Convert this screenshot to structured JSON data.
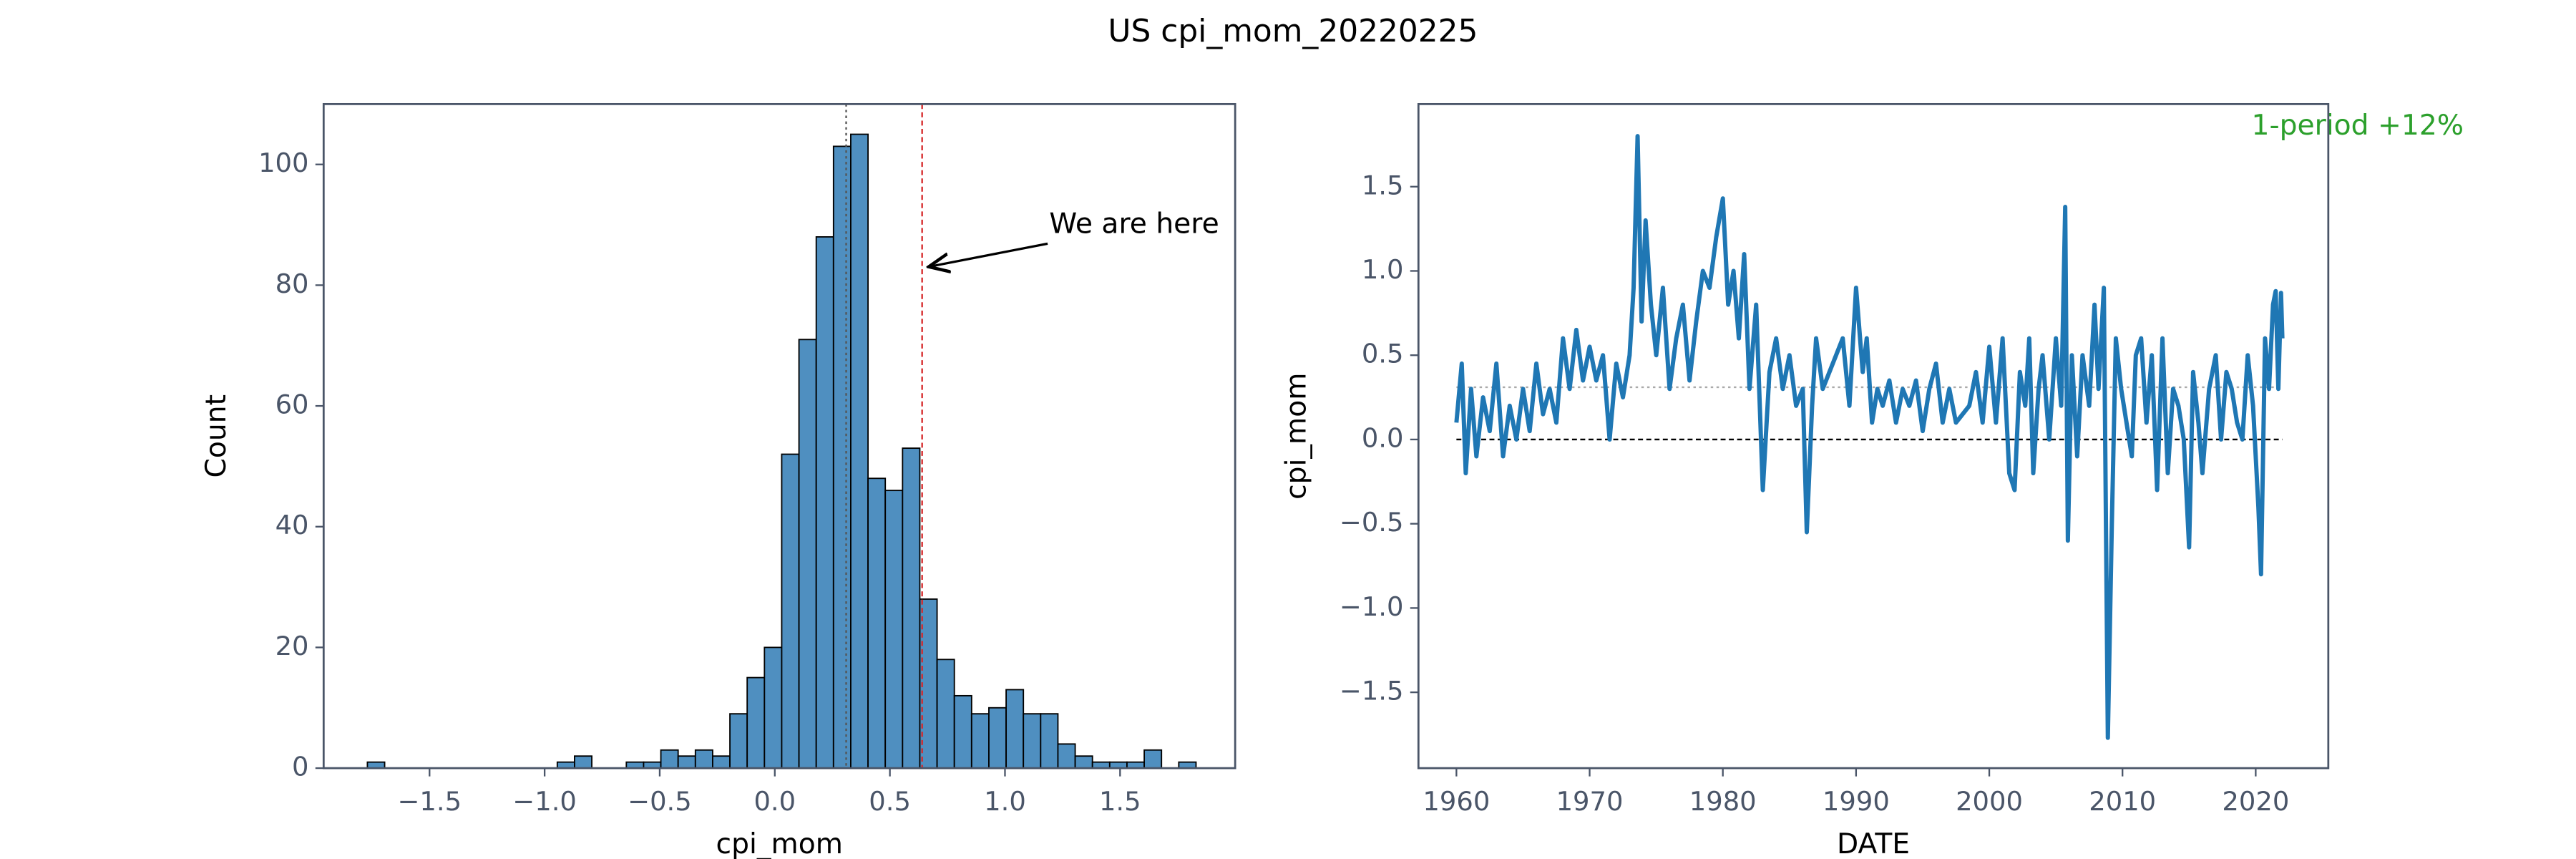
{
  "title": "US cpi_mom_20220225",
  "chart_data": [
    {
      "type": "histogram",
      "xlabel": "cpi_mom",
      "ylabel": "Count",
      "color": "#4f8fc0",
      "bins": [
        -1.77,
        -1.695,
        -1.62,
        -1.545,
        -1.47,
        -1.395,
        -1.32,
        -1.245,
        -1.17,
        -1.095,
        -1.02,
        -0.945,
        -0.87,
        -0.795,
        -0.72,
        -0.645,
        -0.57,
        -0.495,
        -0.42,
        -0.345,
        -0.27,
        -0.195,
        -0.12,
        -0.045,
        0.03,
        0.105,
        0.18,
        0.255,
        0.33,
        0.405,
        0.48,
        0.555,
        0.63,
        0.705,
        0.78,
        0.855,
        0.93,
        1.005,
        1.08,
        1.155,
        1.23,
        1.305,
        1.38,
        1.455,
        1.53,
        1.605,
        1.68,
        1.755,
        1.83
      ],
      "values": [
        1,
        0,
        0,
        0,
        0,
        0,
        0,
        0,
        0,
        0,
        0,
        1,
        2,
        0,
        0,
        1,
        1,
        3,
        2,
        3,
        2,
        9,
        15,
        20,
        52,
        71,
        88,
        103,
        105,
        48,
        46,
        53,
        28,
        18,
        12,
        9,
        10,
        13,
        9,
        9,
        4,
        2,
        1,
        1,
        1,
        3,
        0,
        1
      ],
      "xlim": [
        -1.96,
        2.0
      ],
      "ylim": [
        0,
        110
      ],
      "xticks": [
        {
          "value": -1.5,
          "label": "−1.5"
        },
        {
          "value": -1.0,
          "label": "−1.0"
        },
        {
          "value": -0.5,
          "label": "−0.5"
        },
        {
          "value": 0,
          "label": "0.0"
        },
        0.5,
        {
          "value": 1,
          "label": "1.0"
        },
        1.5
      ],
      "yticks": [
        0,
        20,
        40,
        60,
        80,
        100
      ],
      "vlines": [
        {
          "value": 0.31,
          "color": "#555555",
          "style": "dotted"
        },
        {
          "value": 0.64,
          "color": "#d62728",
          "style": "dashed"
        }
      ],
      "annotation": {
        "text": "We are here",
        "color": "#000000"
      }
    },
    {
      "type": "line",
      "xlabel": "DATE",
      "ylabel": "cpi_mom",
      "color": "#1f77b4",
      "x": [
        1960.0,
        1960.4,
        1960.7,
        1961.1,
        1961.5,
        1962.0,
        1962.5,
        1963.0,
        1963.5,
        1964.0,
        1964.5,
        1965.0,
        1965.5,
        1966.0,
        1966.5,
        1967.0,
        1967.5,
        1968.0,
        1968.5,
        1969.0,
        1969.5,
        1970.0,
        1970.5,
        1971.0,
        1971.5,
        1972.0,
        1972.5,
        1973.0,
        1973.3,
        1973.6,
        1973.9,
        1974.2,
        1974.6,
        1975.0,
        1975.5,
        1976.0,
        1976.5,
        1977.0,
        1977.5,
        1978.0,
        1978.5,
        1979.0,
        1979.5,
        1980.0,
        1980.4,
        1980.8,
        1981.2,
        1981.6,
        1982.0,
        1982.5,
        1983.0,
        1983.5,
        1984.0,
        1984.5,
        1985.0,
        1985.5,
        1986.0,
        1986.3,
        1986.7,
        1987.0,
        1987.5,
        1988.0,
        1988.5,
        1989.0,
        1989.5,
        1990.0,
        1990.5,
        1990.8,
        1991.2,
        1991.6,
        1992.0,
        1992.5,
        1993.0,
        1993.5,
        1994.0,
        1994.5,
        1995.0,
        1995.5,
        1996.0,
        1996.5,
        1997.0,
        1997.5,
        1998.0,
        1998.5,
        1999.0,
        1999.5,
        2000.0,
        2000.5,
        2001.0,
        2001.5,
        2001.9,
        2002.3,
        2002.7,
        2003.0,
        2003.3,
        2003.7,
        2004.0,
        2004.5,
        2005.0,
        2005.4,
        2005.7,
        2005.9,
        2006.2,
        2006.6,
        2007.0,
        2007.5,
        2007.9,
        2008.2,
        2008.6,
        2008.9,
        2009.2,
        2009.5,
        2009.9,
        2010.3,
        2010.7,
        2011.0,
        2011.4,
        2011.8,
        2012.2,
        2012.6,
        2013.0,
        2013.4,
        2013.8,
        2014.2,
        2014.6,
        2015.0,
        2015.3,
        2015.7,
        2016.0,
        2016.5,
        2017.0,
        2017.4,
        2017.8,
        2018.2,
        2018.6,
        2019.0,
        2019.4,
        2019.8,
        2020.2,
        2020.4,
        2020.7,
        2021.0,
        2021.3,
        2021.5,
        2021.7,
        2021.9,
        2022.0
      ],
      "values": [
        0.1,
        0.45,
        -0.2,
        0.3,
        -0.1,
        0.25,
        0.05,
        0.45,
        -0.1,
        0.2,
        0.0,
        0.3,
        0.05,
        0.45,
        0.15,
        0.3,
        0.1,
        0.6,
        0.3,
        0.65,
        0.35,
        0.55,
        0.35,
        0.5,
        0.0,
        0.45,
        0.25,
        0.5,
        0.9,
        1.8,
        0.7,
        1.3,
        0.8,
        0.5,
        0.9,
        0.3,
        0.6,
        0.8,
        0.35,
        0.7,
        1.0,
        0.9,
        1.2,
        1.43,
        0.8,
        1.0,
        0.6,
        1.1,
        0.3,
        0.8,
        -0.3,
        0.4,
        0.6,
        0.3,
        0.5,
        0.2,
        0.3,
        -0.55,
        0.2,
        0.6,
        0.3,
        0.4,
        0.5,
        0.6,
        0.2,
        0.9,
        0.4,
        0.6,
        0.1,
        0.3,
        0.2,
        0.35,
        0.1,
        0.3,
        0.2,
        0.35,
        0.05,
        0.3,
        0.45,
        0.1,
        0.3,
        0.1,
        0.15,
        0.2,
        0.4,
        0.1,
        0.55,
        0.1,
        0.6,
        -0.2,
        -0.3,
        0.4,
        0.2,
        0.6,
        -0.2,
        0.3,
        0.5,
        0.0,
        0.6,
        0.2,
        1.38,
        -0.6,
        0.5,
        -0.1,
        0.5,
        0.2,
        0.8,
        0.3,
        0.9,
        -1.77,
        -0.5,
        0.6,
        0.3,
        0.1,
        -0.1,
        0.5,
        0.6,
        0.1,
        0.5,
        -0.3,
        0.6,
        -0.2,
        0.3,
        0.2,
        0.0,
        -0.64,
        0.4,
        0.1,
        -0.2,
        0.3,
        0.5,
        0.0,
        0.4,
        0.3,
        0.1,
        0.0,
        0.5,
        0.2,
        -0.4,
        -0.8,
        0.6,
        0.3,
        0.8,
        0.88,
        0.3,
        0.87,
        0.6
      ],
      "xlim": [
        1957.15,
        2025.45
      ],
      "ylim": [
        -1.95,
        1.99
      ],
      "xticks": [
        1960,
        1970,
        1980,
        1990,
        2000,
        2010,
        2020
      ],
      "yticks": [
        {
          "value": -1.5,
          "label": "−1.5"
        },
        {
          "value": -1.0,
          "label": "−1.0"
        },
        {
          "value": -0.5,
          "label": "−0.5"
        },
        {
          "value": 0,
          "label": "0.0"
        },
        0.5,
        {
          "value": 1,
          "label": "1.0"
        },
        1.5
      ],
      "hlines": [
        {
          "value": 0,
          "color": "#000000",
          "style": "dashed"
        },
        {
          "value": 0.31,
          "color": "#aaaaaa",
          "style": "dotted"
        }
      ],
      "annotation": {
        "text": "1-period +12%",
        "color": "#2ca02c"
      }
    }
  ]
}
